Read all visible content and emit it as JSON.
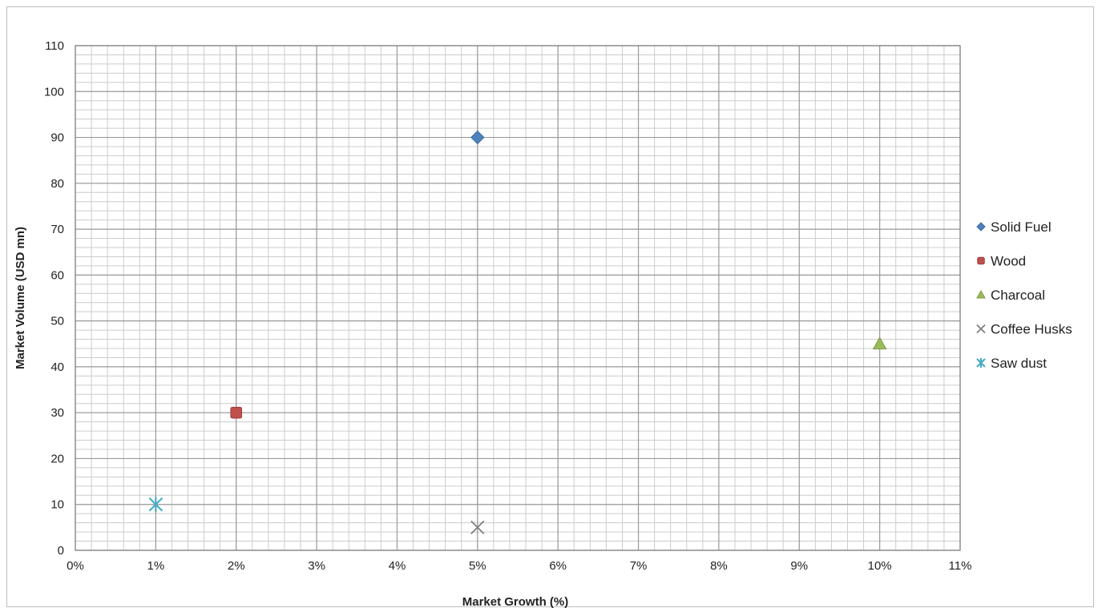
{
  "chart_data": {
    "type": "scatter",
    "title": "",
    "xlabel": "Market Growth (%)",
    "ylabel": "Market Volume (USD mn)",
    "xlim": [
      0,
      11
    ],
    "ylim": [
      0,
      110
    ],
    "x_ticks": [
      "0%",
      "1%",
      "2%",
      "3%",
      "4%",
      "5%",
      "6%",
      "7%",
      "8%",
      "9%",
      "10%",
      "11%"
    ],
    "y_ticks": [
      "0",
      "10",
      "20",
      "30",
      "40",
      "50",
      "60",
      "70",
      "80",
      "90",
      "100",
      "110"
    ],
    "grid": "major and minor",
    "legend_position": "right",
    "series": [
      {
        "name": "Solid Fuel",
        "marker": "diamond",
        "color": "#4f81bd",
        "x": [
          5
        ],
        "y": [
          90
        ]
      },
      {
        "name": "Wood",
        "marker": "square",
        "color": "#c0504d",
        "x": [
          2
        ],
        "y": [
          30
        ]
      },
      {
        "name": "Charcoal",
        "marker": "triangle",
        "color": "#9bbb59",
        "x": [
          10
        ],
        "y": [
          45
        ]
      },
      {
        "name": "Coffee Husks",
        "marker": "x",
        "color": "#7f7f7f",
        "x": [
          5
        ],
        "y": [
          5
        ]
      },
      {
        "name": "Saw dust",
        "marker": "star",
        "color": "#4bacc6",
        "x": [
          1
        ],
        "y": [
          10
        ]
      }
    ]
  }
}
